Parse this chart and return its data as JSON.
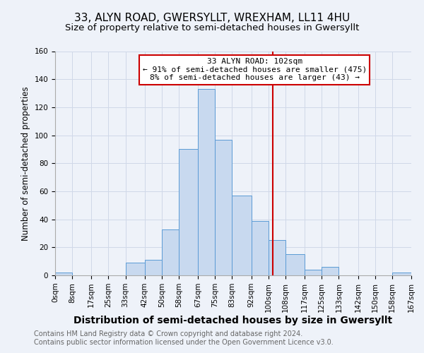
{
  "title": "33, ALYN ROAD, GWERSYLLT, WREXHAM, LL11 4HU",
  "subtitle": "Size of property relative to semi-detached houses in Gwersyllt",
  "xlabel": "Distribution of semi-detached houses by size in Gwersyllt",
  "ylabel": "Number of semi-detached properties",
  "bin_labels": [
    "0sqm",
    "8sqm",
    "17sqm",
    "25sqm",
    "33sqm",
    "42sqm",
    "50sqm",
    "58sqm",
    "67sqm",
    "75sqm",
    "83sqm",
    "92sqm",
    "100sqm",
    "108sqm",
    "117sqm",
    "125sqm",
    "133sqm",
    "142sqm",
    "150sqm",
    "158sqm",
    "167sqm"
  ],
  "bin_edges": [
    0,
    8,
    17,
    25,
    33,
    42,
    50,
    58,
    67,
    75,
    83,
    92,
    100,
    108,
    117,
    125,
    133,
    142,
    150,
    158,
    167
  ],
  "bar_heights": [
    2,
    0,
    0,
    0,
    9,
    11,
    33,
    90,
    133,
    97,
    57,
    39,
    25,
    15,
    4,
    6,
    0,
    0,
    0,
    2
  ],
  "bar_color": "#c8d9ef",
  "bar_edge_color": "#5b9bd5",
  "grid_color": "#d0d8e8",
  "property_line_x": 102,
  "property_line_color": "#cc0000",
  "annotation_title": "33 ALYN ROAD: 102sqm",
  "annotation_line1": "← 91% of semi-detached houses are smaller (475)",
  "annotation_line2": "8% of semi-detached houses are larger (43) →",
  "annotation_box_color": "#cc0000",
  "ylim": [
    0,
    160
  ],
  "yticks": [
    0,
    20,
    40,
    60,
    80,
    100,
    120,
    140,
    160
  ],
  "footer1": "Contains HM Land Registry data © Crown copyright and database right 2024.",
  "footer2": "Contains public sector information licensed under the Open Government Licence v3.0.",
  "title_fontsize": 11,
  "subtitle_fontsize": 9.5,
  "xlabel_fontsize": 10,
  "ylabel_fontsize": 8.5,
  "tick_fontsize": 7.5,
  "footer_fontsize": 7,
  "background_color": "#eef2f9"
}
